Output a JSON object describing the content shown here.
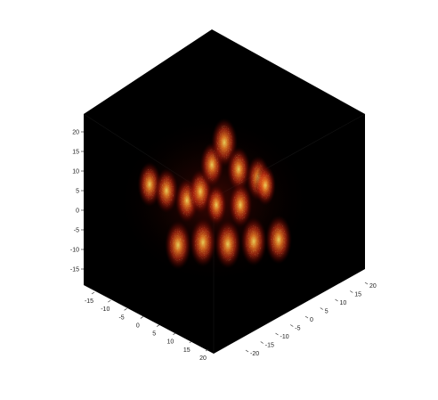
{
  "colors": {
    "background": "#ffffff",
    "cube": "#000000",
    "blob_inner": "#ffd84a",
    "blob_mid": "#e8481e",
    "blob_outer": "#7a0d06"
  },
  "axes": {
    "vertical": {
      "ticks": [
        "20",
        "15",
        "10",
        "5",
        "0",
        "-5",
        "-10",
        "-15"
      ]
    },
    "left_bottom": {
      "ticks": [
        "-15",
        "-10",
        "-5",
        "0",
        "5",
        "10",
        "15",
        "20"
      ]
    },
    "right_bottom": {
      "ticks": [
        "-20",
        "-15",
        "-10",
        "-5",
        "0",
        "5",
        "10",
        "15",
        "20"
      ]
    }
  }
}
